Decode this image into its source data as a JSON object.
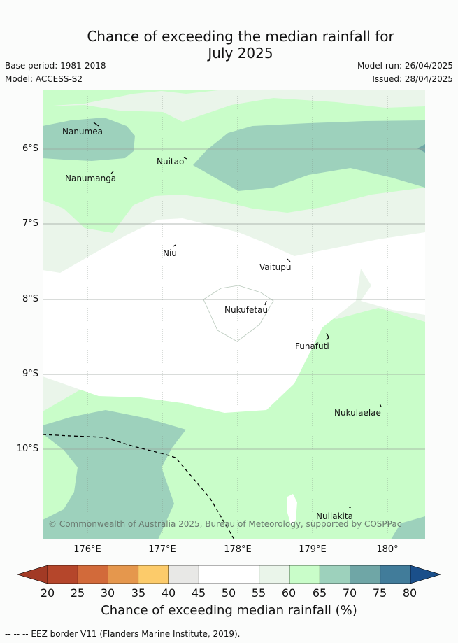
{
  "header": {
    "title_line1": "Chance of exceeding the median rainfall for",
    "title_line2": "July 2025",
    "base_period": "Base period: 1981-2018",
    "model": "Model: ACCESS-S2",
    "model_run": "Model run: 26/04/2025",
    "issued": "Issued: 28/04/2025"
  },
  "map": {
    "lat_labels": [
      "6°S",
      "7°S",
      "8°S",
      "9°S",
      "10°S"
    ],
    "lon_labels": [
      "176°E",
      "177°E",
      "178°E",
      "179°E",
      "180°"
    ],
    "places": [
      "Nanumea",
      "Nuitao",
      "Nanumanga",
      "Niu",
      "Vaitupu",
      "Nukufetau",
      "Funafuti",
      "Nukulaelae",
      "Nuilakita"
    ],
    "copyright": "© Commonwealth of Australia 2025, Bureau of Meteorology, supported by COSPPac",
    "colors": {
      "band_55_60": "#eaf5ea",
      "band_60_65": "#c9fdc9",
      "band_65_70": "#9dd1bc",
      "band_70_75": "#6fa6a6",
      "band_45_55": "#ffffff"
    }
  },
  "colorbar": {
    "ticks": [
      "20",
      "25",
      "30",
      "35",
      "40",
      "45",
      "50",
      "55",
      "60",
      "65",
      "70",
      "75",
      "80"
    ],
    "colors": [
      "#b5462b",
      "#d26a3a",
      "#e5974d",
      "#fccb6a",
      "#e8e8e6",
      "#ffffff",
      "#ffffff",
      "#eaf5ea",
      "#c9fdc9",
      "#9dd1bc",
      "#6fa6a6",
      "#417c9a"
    ],
    "under_color": "#a23a25",
    "over_color": "#1a4f8a",
    "label": "Chance of exceeding median rainfall (%)"
  },
  "footer": {
    "eez_note": "-- -- -- EEZ border V11 (Flanders Marine Institute, 2019)."
  }
}
